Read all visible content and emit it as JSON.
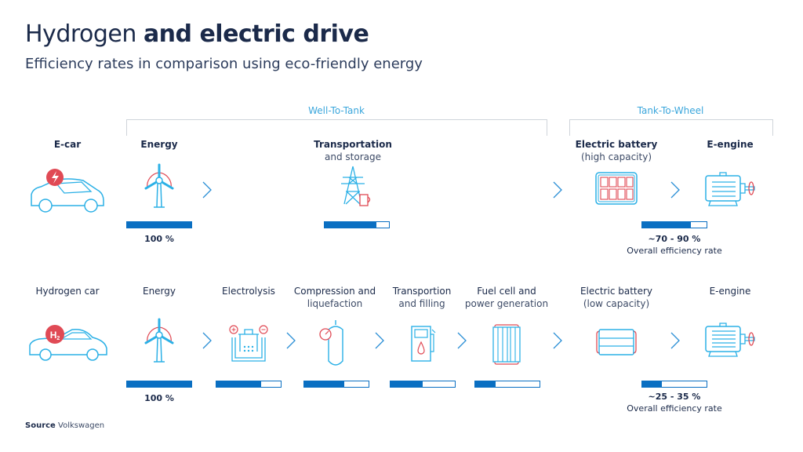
{
  "title": {
    "light": "Hydrogen ",
    "bold": "and electric drive"
  },
  "subtitle": "Efficiency rates in comparison using eco-friendly energy",
  "phases": {
    "well_to_tank": "Well-To-Tank",
    "tank_to_wheel": "Tank-To-Wheel"
  },
  "colors": {
    "text": "#1b2a4a",
    "icon": "#2bb0e6",
    "accent_red": "#e04a55",
    "bar": "#0a6fc2",
    "phase_label": "#3aa6dc"
  },
  "ecar_row": {
    "vehicle": {
      "label": "E-car",
      "icon": "electric-car-icon"
    },
    "steps": [
      {
        "title": "Energy",
        "icon": "wind-turbine-icon",
        "efficiency_percent": 100,
        "value_label": "100 %"
      },
      {
        "title": "Transportation",
        "subtitle": "and storage",
        "icon": "power-pylon-icon",
        "efficiency_percent": 80
      },
      {
        "title": "Electric battery",
        "subtitle": "(high capacity)",
        "icon": "battery-high-icon",
        "efficiency_percent": 75
      },
      {
        "title": "E-engine",
        "icon": "electric-motor-icon"
      }
    ],
    "overall": {
      "value": "~70 - 90 %",
      "label": "Overall efficiency rate"
    }
  },
  "hydrogen_row": {
    "vehicle": {
      "label": "Hydrogen car",
      "icon": "hydrogen-car-icon",
      "badge": "H2"
    },
    "steps": [
      {
        "title": "Energy",
        "icon": "wind-turbine-icon",
        "efficiency_percent": 100,
        "value_label": "100 %"
      },
      {
        "title": "Electrolysis",
        "icon": "electrolysis-icon",
        "efficiency_percent": 70
      },
      {
        "title": "Compression and",
        "subtitle": "liquefaction",
        "icon": "gas-tank-icon",
        "efficiency_percent": 62
      },
      {
        "title": "Transportion",
        "subtitle": "and filling",
        "icon": "fuel-pump-icon",
        "efficiency_percent": 50
      },
      {
        "title": "Fuel cell and",
        "subtitle": "power generation",
        "icon": "fuel-cell-icon",
        "efficiency_percent": 32
      },
      {
        "title": "Electric battery",
        "subtitle": "(low capacity)",
        "icon": "battery-low-icon",
        "efficiency_percent": 30
      },
      {
        "title": "E-engine",
        "icon": "electric-motor-icon"
      }
    ],
    "overall": {
      "value": "~25 - 35 %",
      "label": "Overall efficiency rate"
    }
  },
  "source": {
    "label": "Source",
    "value": "Volkswagen"
  }
}
